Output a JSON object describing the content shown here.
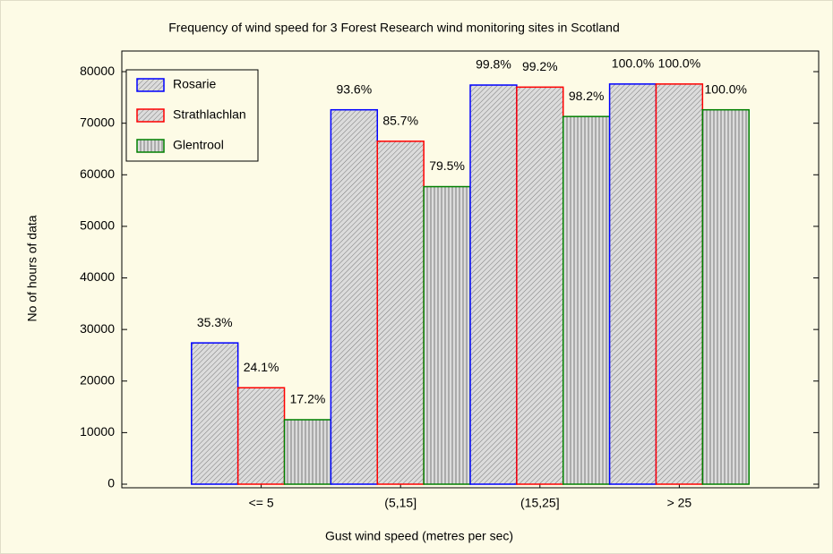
{
  "chart_data": {
    "type": "bar",
    "title": "Frequency of wind speed for 3 Forest Research wind monitoring sites in Scotland",
    "x_label": "Gust wind speed (metres per sec)",
    "y_label": "No of hours of data",
    "categories": [
      "<= 5",
      "(5,15]",
      "(15,25]",
      "> 25"
    ],
    "series": [
      {
        "name": "Rosarie",
        "color": "#0000ff",
        "hatch": "diagonal",
        "values": [
          27400,
          72600,
          77400,
          77600
        ],
        "labels": [
          "35.3%",
          "93.6%",
          "99.8%",
          "100.0%"
        ]
      },
      {
        "name": "Strathlachlan",
        "color": "#ff0000",
        "hatch": "diagonal",
        "values": [
          18700,
          66500,
          77000,
          77600
        ],
        "labels": [
          "24.1%",
          "85.7%",
          "99.2%",
          "100.0%"
        ]
      },
      {
        "name": "Glentrool",
        "color": "#008000",
        "hatch": "vertical",
        "values": [
          12500,
          57700,
          71300,
          72600
        ],
        "labels": [
          "17.2%",
          "79.5%",
          "98.2%",
          "100.0%"
        ]
      }
    ],
    "ylim": [
      0,
      84000
    ],
    "yticks": [
      0,
      10000,
      20000,
      30000,
      40000,
      50000,
      60000,
      70000,
      80000
    ],
    "grid": false,
    "legend": "upper left"
  }
}
